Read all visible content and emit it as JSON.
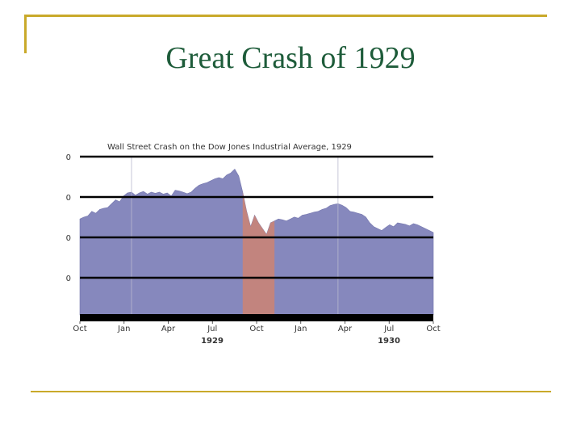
{
  "slide": {
    "title": "Great Crash of 1929"
  },
  "chart_data": {
    "type": "area",
    "title": "Wall Street Crash on the Dow Jones Industrial Average, 1929",
    "x_ticks": [
      "Oct",
      "Jan",
      "Apr",
      "Jul",
      "Oct",
      "Jan",
      "Apr",
      "Jul",
      "Oct"
    ],
    "year_labels": [
      "1929",
      "1930"
    ],
    "y_ticks": [
      "0",
      "0",
      "0",
      "0"
    ],
    "crash_band_weeks": [
      41,
      49
    ],
    "series": [
      {
        "values": [
          250,
          255,
          258,
          270,
          265,
          275,
          278,
          280,
          290,
          300,
          295,
          310,
          318,
          320,
          312,
          318,
          322,
          315,
          320,
          317,
          320,
          315,
          318,
          310,
          325,
          323,
          320,
          316,
          320,
          330,
          338,
          342,
          345,
          350,
          355,
          358,
          355,
          365,
          370,
          380,
          362,
          320,
          270,
          230,
          260,
          240,
          225,
          210,
          240,
          245,
          250,
          248,
          245,
          250,
          255,
          252,
          260,
          262,
          265,
          268,
          270,
          275,
          278,
          285,
          288,
          290,
          286,
          280,
          270,
          268,
          265,
          262,
          255,
          240,
          230,
          225,
          220,
          228,
          235,
          230,
          240,
          238,
          236,
          232,
          238,
          235,
          230,
          225,
          220,
          215
        ]
      }
    ],
    "colors": {
      "area": "#8688bd",
      "crash": "#c2847e",
      "band": "#000000"
    }
  }
}
